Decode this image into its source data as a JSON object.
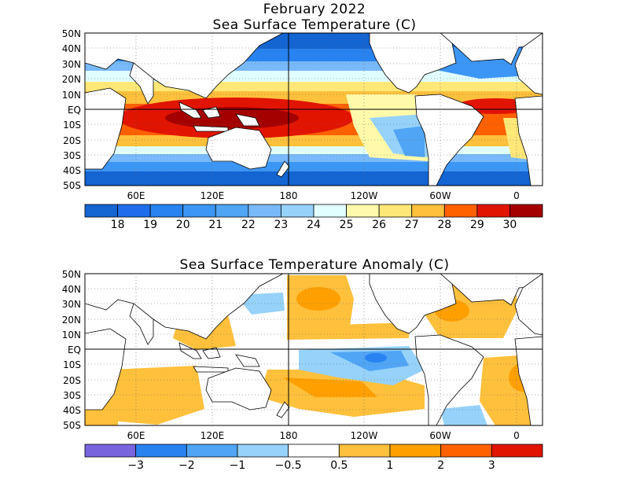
{
  "figure": {
    "title": "February 2022",
    "panels": [
      {
        "title": "Sea Surface Temperature (C)",
        "colorbar": {
          "colors": [
            "#1464d2",
            "#1e6eeb",
            "#2882f0",
            "#3c96f5",
            "#50a5f5",
            "#78b9fa",
            "#96d2fa",
            "#e1ffff",
            "#fffaaa",
            "#ffe878",
            "#ffc03c",
            "#ff6000",
            "#e11400",
            "#a50000"
          ],
          "labels": [
            "18",
            "19",
            "20",
            "21",
            "22",
            "23",
            "24",
            "25",
            "26",
            "27",
            "28",
            "29",
            "30"
          ]
        }
      },
      {
        "title": "Sea Surface Temperature Anomaly (C)",
        "colorbar": {
          "colors": [
            "#7864dc",
            "#2882f0",
            "#50a5f5",
            "#96d2fa",
            "#ffffff",
            "#ffc03c",
            "#ffa000",
            "#ff6000",
            "#e11400"
          ],
          "labels": [
            "−3",
            "−2",
            "−1",
            "−0.5",
            "0.5",
            "1",
            "2",
            "3"
          ]
        }
      }
    ],
    "lat_labels": [
      "50N",
      "40N",
      "30N",
      "20N",
      "10N",
      "EQ",
      "10S",
      "20S",
      "30S",
      "40S",
      "50S"
    ],
    "lon_labels": [
      "60E",
      "120E",
      "180",
      "120W",
      "60W",
      "0"
    ]
  }
}
